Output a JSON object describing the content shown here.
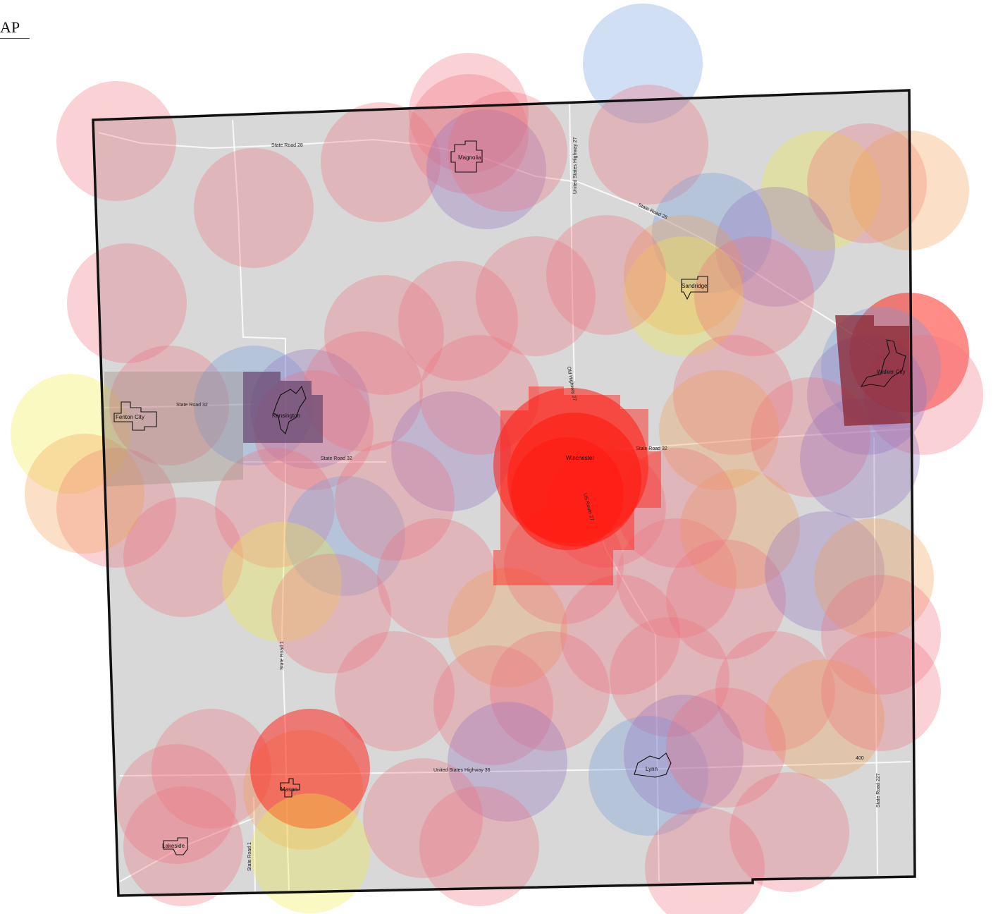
{
  "header": {
    "label": "AP"
  },
  "map": {
    "background_color": "#d8d8d8",
    "border_color": "#111111",
    "towns": [
      {
        "name": "Magnolia",
        "color": "#c8303e"
      },
      {
        "name": "Sandridge",
        "color": "#e39a38"
      },
      {
        "name": "Walker City",
        "color": "#8a2530"
      },
      {
        "name": "Fenton City",
        "color": "#9a8a80"
      },
      {
        "name": "Kensington",
        "color": "#6a4a70"
      },
      {
        "name": "Winchester",
        "color": "#ff1a10"
      },
      {
        "name": "Mason",
        "color": "#e04030"
      },
      {
        "name": "Lynn",
        "color": "#706090"
      },
      {
        "name": "Lakeside",
        "color": "#c06070"
      }
    ],
    "roads": [
      {
        "name": "State Road 28"
      },
      {
        "name": "State Road 28"
      },
      {
        "name": "United States Highway 27"
      },
      {
        "name": "State Road 32"
      },
      {
        "name": "State Road 32"
      },
      {
        "name": "State Road 32"
      },
      {
        "name": "Old Highway 27"
      },
      {
        "name": "US Route 27"
      },
      {
        "name": "State Road 1"
      },
      {
        "name": "State Road 1"
      },
      {
        "name": "United States Highway 36"
      },
      {
        "name": "State Road 227"
      },
      {
        "name": "400"
      }
    ],
    "circle_colors": {
      "pink": "#f0707c",
      "blue": "#6f9ae0",
      "yellow": "#f4ec40",
      "orange": "#f4a050",
      "purple": "#9070c0",
      "red": "#ff1a10"
    }
  }
}
